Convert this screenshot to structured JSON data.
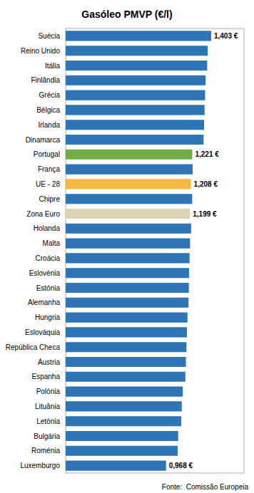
{
  "chart_data": {
    "type": "bar",
    "orientation": "horizontal",
    "title": "Gasóleo PMVP (€/l)",
    "annotations": [
      "Fonte:  Comissão Europeia"
    ],
    "categories": [
      "Suécia",
      "Reino Unido",
      "Itália",
      "Finlândia",
      "Grécia",
      "Bélgica",
      "Irlanda",
      "Dinamarca",
      "Portugal",
      "França",
      "UE - 28",
      "Chipre",
      "Zona Euro",
      "Holanda",
      "Malta",
      "Croácia",
      "Eslovénia",
      "Estónia",
      "Alemanha",
      "Hungria",
      "Eslováquia",
      "República Checa",
      "Áustria",
      "Espanha",
      "Polónia",
      "Lituânia",
      "Letónia",
      "Bulgária",
      "Roménia",
      "Luxemburgo"
    ],
    "values": [
      1.403,
      1.37,
      1.365,
      1.35,
      1.345,
      1.34,
      1.335,
      1.33,
      1.221,
      1.225,
      1.208,
      1.22,
      1.199,
      1.21,
      1.2,
      1.195,
      1.19,
      1.188,
      1.185,
      1.175,
      1.17,
      1.165,
      1.16,
      1.155,
      1.13,
      1.12,
      1.115,
      1.085,
      1.08,
      0.968
    ],
    "value_labels": [
      "1,403 €",
      null,
      null,
      null,
      null,
      null,
      null,
      null,
      "1,221 €",
      null,
      "1,208 €",
      null,
      "1,199 €",
      null,
      null,
      null,
      null,
      null,
      null,
      null,
      null,
      null,
      null,
      null,
      null,
      null,
      null,
      null,
      null,
      "0,968 €"
    ],
    "data_labels": true,
    "colors": [
      "#2E75B6",
      "#2E75B6",
      "#2E75B6",
      "#2E75B6",
      "#2E75B6",
      "#2E75B6",
      "#2E75B6",
      "#2E75B6",
      "#70AD47",
      "#2E75B6",
      "#F4B942",
      "#2E75B6",
      "#D9D5B5",
      "#2E75B6",
      "#2E75B6",
      "#2E75B6",
      "#2E75B6",
      "#2E75B6",
      "#2E75B6",
      "#2E75B6",
      "#2E75B6",
      "#2E75B6",
      "#2E75B6",
      "#2E75B6",
      "#2E75B6",
      "#2E75B6",
      "#2E75B6",
      "#2E75B6",
      "#2E75B6",
      "#2E75B6"
    ],
    "xlim": [
      0,
      1.72
    ],
    "tick_labels": "y",
    "grid": false
  }
}
